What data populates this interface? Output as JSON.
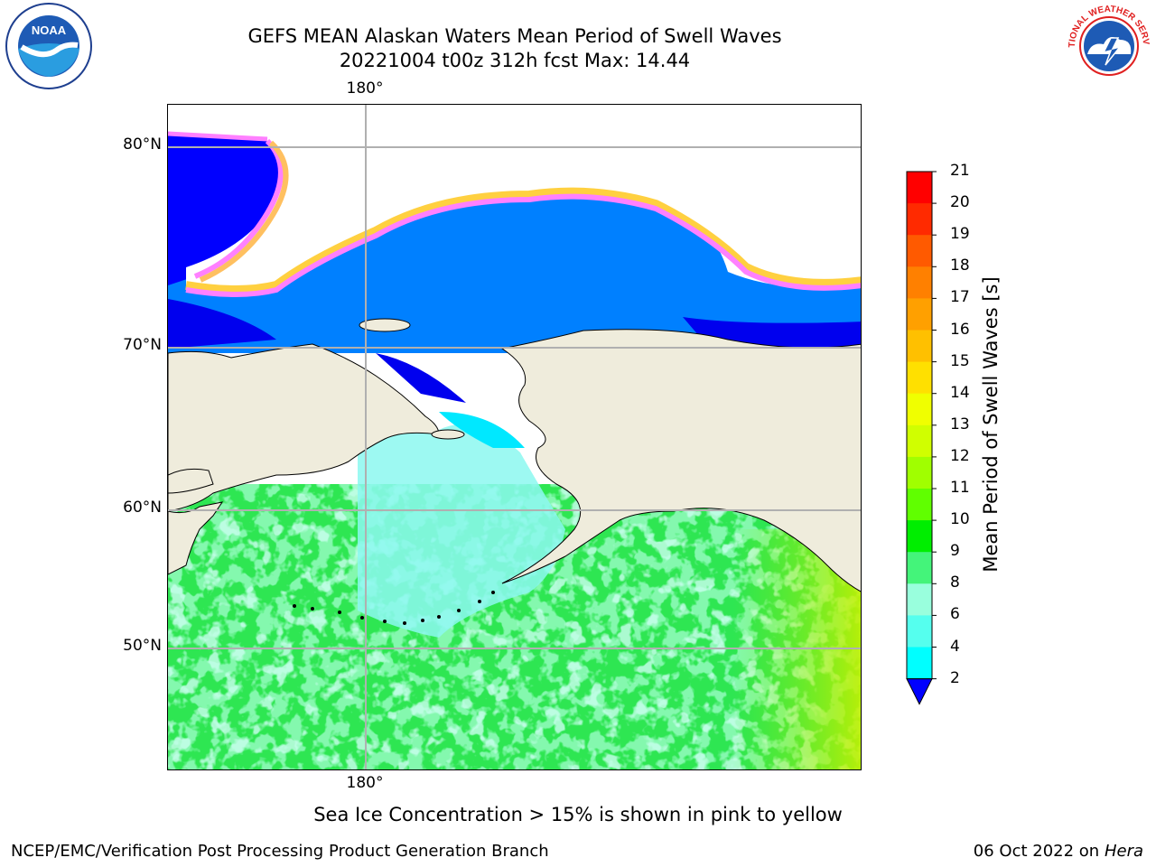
{
  "title_line1": "GEFS MEAN Alaskan Waters Mean Period of Swell Waves",
  "title_line2": "20221004 t00z 312h fcst   Max: 14.44",
  "top_lon_label": "180°",
  "bottom_lon_label": "180°",
  "lat_labels": [
    "80°N",
    "70°N",
    "60°N",
    "50°N"
  ],
  "colorbar": {
    "label": "Mean Period of Swell Waves [s]",
    "ticks": [
      "21",
      "20",
      "19",
      "18",
      "17",
      "16",
      "15",
      "14",
      "13",
      "12",
      "11",
      "10",
      "9",
      "8",
      "6",
      "4",
      "2"
    ],
    "colors": [
      "#ff0000",
      "#ff2a00",
      "#ff5a00",
      "#ff8000",
      "#ffa000",
      "#ffc000",
      "#ffe000",
      "#f0ff00",
      "#d0ff00",
      "#a0ff00",
      "#60ff00",
      "#00ee00",
      "#44f47a",
      "#99ffdd",
      "#55ffee",
      "#00ffff",
      "#00ddff",
      "#0080ff",
      "#0000ff"
    ]
  },
  "note": "Sea Ice Concentration > 15% is shown in pink to yellow",
  "footer_left": "NCEP/EMC/Verification Post Processing Product Generation Branch",
  "footer_right_date": "06 Oct 2022 on ",
  "footer_right_host": "Hera",
  "logos": {
    "left": "noaa-logo",
    "left_text": "NOAA",
    "right": "national-weather-service-logo",
    "right_text": "NATIONAL WEATHER SERVICE"
  },
  "map_colors": {
    "land": "#efecdc",
    "ice_edge": [
      "#ff80ff",
      "#ffc060",
      "#ffe040"
    ],
    "sea_ice_white": "#ffffff"
  }
}
